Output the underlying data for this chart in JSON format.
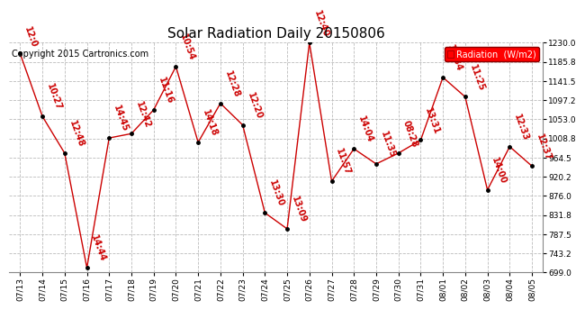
{
  "title": "Solar Radiation Daily 20150806",
  "copyright": "Copyright 2015 Cartronics.com",
  "legend_label": "Radiation  (W/m2)",
  "dates": [
    "07/13",
    "07/14",
    "07/15",
    "07/16",
    "07/17",
    "07/18",
    "07/19",
    "07/20",
    "07/21",
    "07/22",
    "07/23",
    "07/24",
    "07/25",
    "07/26",
    "07/27",
    "07/28",
    "07/29",
    "07/30",
    "07/31",
    "08/01",
    "08/02",
    "08/03",
    "08/04",
    "08/05"
  ],
  "values": [
    1205,
    1060,
    975,
    710,
    1010,
    1020,
    1075,
    1175,
    1000,
    1090,
    1040,
    837,
    800,
    1230,
    910,
    985,
    950,
    975,
    1005,
    1150,
    1105,
    890,
    990,
    945
  ],
  "time_labels": [
    "12:0",
    "10:27",
    "12:48",
    "14:44",
    "14:45",
    "12:42",
    "11:16",
    "10:54",
    "14:18",
    "12:28",
    "12:20",
    "13:30",
    "13:09",
    "12:40",
    "11:57",
    "14:04",
    "11:35",
    "08:28",
    "13:31",
    "12:34",
    "11:25",
    "14:00",
    "12:33",
    "12:37"
  ],
  "ylim": [
    699.0,
    1230.0
  ],
  "yticks": [
    699.0,
    743.2,
    787.5,
    831.8,
    876.0,
    920.2,
    964.5,
    1008.8,
    1053.0,
    1097.2,
    1141.5,
    1185.8,
    1230.0
  ],
  "line_color": "#cc0000",
  "marker_color": "#000000",
  "background_color": "#ffffff",
  "grid_color": "#bbbbbb",
  "title_fontsize": 11,
  "copyright_fontsize": 7,
  "annotation_fontsize": 7
}
